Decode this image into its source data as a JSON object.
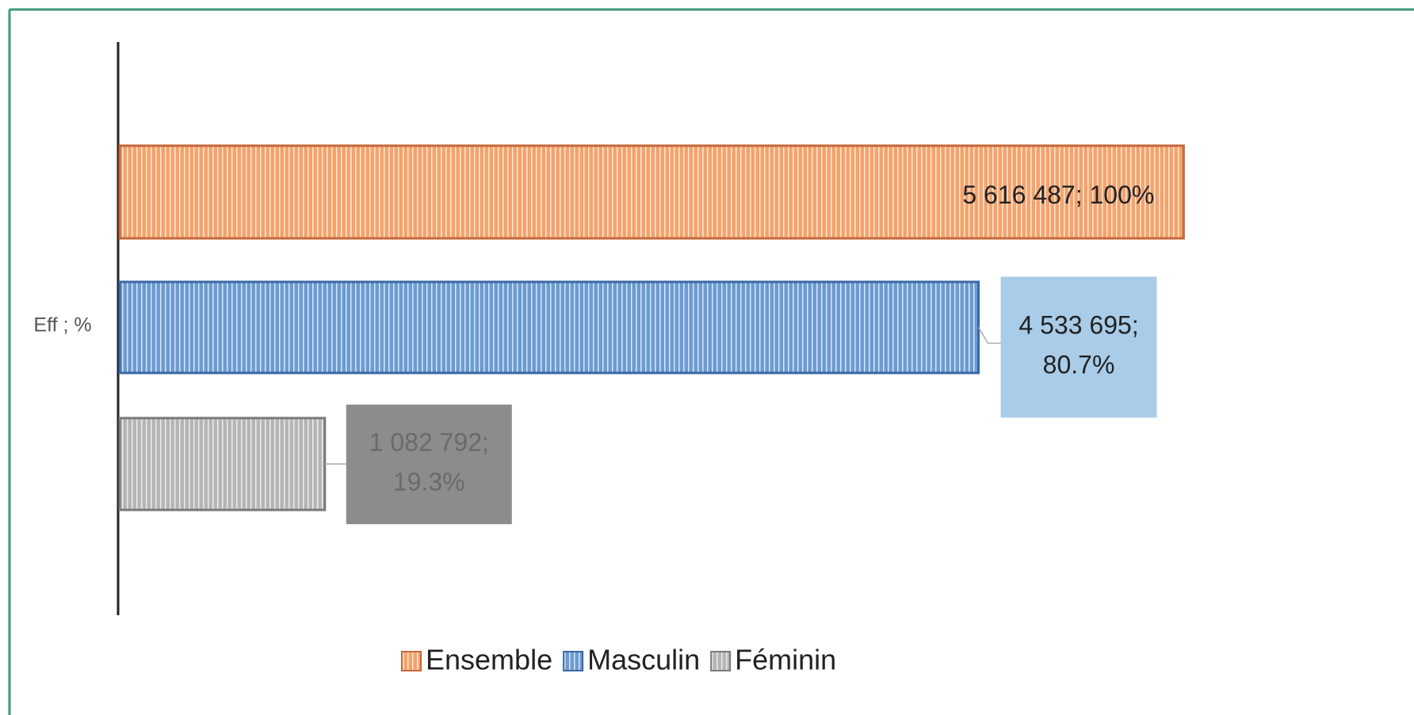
{
  "chart_data": {
    "type": "bar",
    "orientation": "horizontal",
    "categories": [
      "Eff ; %"
    ],
    "series": [
      {
        "name": "Ensemble",
        "color": "#f4a36c",
        "edge": "#c5683a",
        "label_box": null,
        "label_color": "#222222",
        "values": [
          5616487
        ],
        "value_labels": [
          "5 616 487; 100%"
        ]
      },
      {
        "name": "Masculin",
        "color": "#6b9bd1",
        "edge": "#3b68a3",
        "label_box": "#a9cce8",
        "label_color": "#222222",
        "values": [
          4533695
        ],
        "value_labels": [
          "4 533 695; 80.7%"
        ]
      },
      {
        "name": "Féminin",
        "color": "#b5b5b5",
        "edge": "#7a7a7a",
        "label_box": "#8c8c8c",
        "label_color": "#6a6a6a",
        "values": [
          1082792
        ],
        "value_labels": [
          "1 082 792; 19.3%"
        ]
      }
    ],
    "xlim": [
      0,
      6000000
    ],
    "legend": "bottom"
  }
}
